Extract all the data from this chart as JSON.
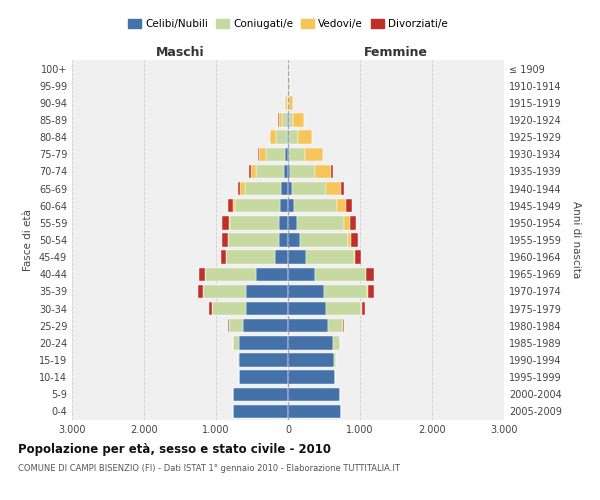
{
  "age_groups": [
    "0-4",
    "5-9",
    "10-14",
    "15-19",
    "20-24",
    "25-29",
    "30-34",
    "35-39",
    "40-44",
    "45-49",
    "50-54",
    "55-59",
    "60-64",
    "65-69",
    "70-74",
    "75-79",
    "80-84",
    "85-89",
    "90-94",
    "95-99",
    "100+"
  ],
  "birth_years": [
    "2005-2009",
    "2000-2004",
    "1995-1999",
    "1990-1994",
    "1985-1989",
    "1980-1984",
    "1975-1979",
    "1970-1974",
    "1965-1969",
    "1960-1964",
    "1955-1959",
    "1950-1954",
    "1945-1949",
    "1940-1944",
    "1935-1939",
    "1930-1934",
    "1925-1929",
    "1920-1924",
    "1915-1919",
    "1910-1914",
    "≤ 1909"
  ],
  "male_celibi": [
    760,
    760,
    680,
    680,
    680,
    620,
    580,
    580,
    450,
    180,
    130,
    120,
    110,
    100,
    60,
    40,
    20,
    10,
    5,
    2,
    0
  ],
  "male_coniugati": [
    0,
    0,
    5,
    15,
    80,
    200,
    470,
    600,
    700,
    680,
    700,
    680,
    620,
    500,
    380,
    260,
    150,
    70,
    15,
    5,
    2
  ],
  "male_vedovi": [
    0,
    0,
    0,
    0,
    1,
    2,
    3,
    5,
    5,
    5,
    10,
    20,
    30,
    60,
    80,
    100,
    80,
    50,
    15,
    3,
    1
  ],
  "male_divorziati": [
    0,
    0,
    0,
    2,
    5,
    10,
    50,
    70,
    80,
    60,
    80,
    90,
    80,
    40,
    20,
    10,
    5,
    2,
    1,
    0,
    0
  ],
  "female_celibi": [
    730,
    720,
    650,
    640,
    630,
    560,
    530,
    500,
    380,
    250,
    160,
    120,
    80,
    50,
    30,
    20,
    15,
    10,
    5,
    2,
    0
  ],
  "female_coniugati": [
    0,
    0,
    5,
    20,
    90,
    200,
    490,
    600,
    700,
    660,
    680,
    660,
    600,
    480,
    350,
    210,
    120,
    60,
    15,
    5,
    2
  ],
  "female_vedovi": [
    0,
    0,
    0,
    1,
    2,
    3,
    5,
    10,
    10,
    20,
    40,
    80,
    130,
    200,
    220,
    250,
    200,
    150,
    50,
    15,
    5
  ],
  "female_divorziati": [
    0,
    0,
    0,
    2,
    5,
    10,
    40,
    90,
    100,
    80,
    90,
    90,
    80,
    50,
    20,
    10,
    5,
    2,
    1,
    0,
    0
  ],
  "color_celibi": "#4472a8",
  "color_coniugati": "#c5d9a0",
  "color_vedovi": "#f5c55a",
  "color_divorziati": "#c0302a",
  "title": "Popolazione per età, sesso e stato civile - 2010",
  "subtitle": "COMUNE DI CAMPI BISENZIO (FI) - Dati ISTAT 1° gennaio 2010 - Elaborazione TUTTITALIA.IT",
  "xlabel_left": "Maschi",
  "xlabel_right": "Femmine",
  "ylabel_left": "Fasce di età",
  "ylabel_right": "Anni di nascita",
  "xlim": 3000,
  "bg_color": "#f0f0f0",
  "grid_color": "#cccccc"
}
